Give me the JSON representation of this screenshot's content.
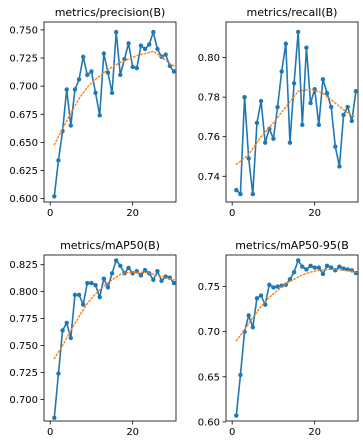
{
  "colors": {
    "series": "#1f77b4",
    "smooth": "#ff7f0e",
    "axis": "#000000"
  },
  "chart_data": [
    {
      "type": "line",
      "title": "metrics/precision(B)",
      "xlim": [
        -1.5,
        30.5
      ],
      "ylim": [
        0.597,
        0.757
      ],
      "x_ticks": [
        0,
        20
      ],
      "y_ticks": [
        "0.600",
        "0.625",
        "0.650",
        "0.675",
        "0.700",
        "0.725",
        "0.750"
      ],
      "y_tick_values": [
        0.6,
        0.625,
        0.65,
        0.675,
        0.7,
        0.725,
        0.75
      ],
      "series": [
        {
          "style": "line-marker",
          "x": [
            1,
            2,
            3,
            4,
            5,
            6,
            7,
            8,
            9,
            10,
            11,
            12,
            13,
            14,
            15,
            16,
            17,
            18,
            19,
            20,
            21,
            22,
            23,
            24,
            25,
            26,
            27,
            28,
            29,
            30
          ],
          "values": [
            0.602,
            0.634,
            0.66,
            0.697,
            0.665,
            0.697,
            0.706,
            0.726,
            0.71,
            0.713,
            0.694,
            0.674,
            0.729,
            0.712,
            0.694,
            0.748,
            0.71,
            0.724,
            0.738,
            0.717,
            0.716,
            0.736,
            0.733,
            0.737,
            0.748,
            0.733,
            0.726,
            0.728,
            0.718,
            0.713
          ]
        },
        {
          "style": "dotted",
          "x": [
            1,
            3,
            5,
            7,
            9,
            11,
            13,
            15,
            17,
            19,
            21,
            23,
            25,
            27,
            29,
            30
          ],
          "values": [
            0.648,
            0.662,
            0.676,
            0.689,
            0.699,
            0.706,
            0.712,
            0.717,
            0.721,
            0.724,
            0.727,
            0.729,
            0.731,
            0.726,
            0.72,
            0.718
          ]
        }
      ]
    },
    {
      "type": "line",
      "title": "metrics/recall(B)",
      "xlim": [
        -1.5,
        30.5
      ],
      "ylim": [
        0.727,
        0.818
      ],
      "x_ticks": [
        0,
        20
      ],
      "y_ticks": [
        "0.74",
        "0.76",
        "0.78",
        "0.80"
      ],
      "y_tick_values": [
        0.74,
        0.76,
        0.78,
        0.8
      ],
      "series": [
        {
          "style": "line-marker",
          "x": [
            1,
            2,
            3,
            4,
            5,
            6,
            7,
            8,
            9,
            10,
            11,
            12,
            13,
            14,
            15,
            16,
            17,
            18,
            19,
            20,
            21,
            22,
            23,
            24,
            25,
            26,
            27,
            28,
            29,
            30
          ],
          "values": [
            0.733,
            0.731,
            0.78,
            0.749,
            0.731,
            0.767,
            0.778,
            0.757,
            0.764,
            0.759,
            0.775,
            0.793,
            0.807,
            0.757,
            0.787,
            0.813,
            0.766,
            0.805,
            0.777,
            0.784,
            0.766,
            0.789,
            0.782,
            0.775,
            0.755,
            0.745,
            0.771,
            0.775,
            0.768,
            0.783
          ]
        },
        {
          "style": "dotted",
          "x": [
            1,
            4,
            7,
            10,
            13,
            16,
            19,
            22,
            25,
            28,
            30
          ],
          "values": [
            0.746,
            0.751,
            0.76,
            0.767,
            0.775,
            0.783,
            0.784,
            0.782,
            0.777,
            0.772,
            0.77
          ]
        }
      ]
    },
    {
      "type": "line",
      "title": "metrics/mAP50(B)",
      "xlim": [
        -1.5,
        30.5
      ],
      "ylim": [
        0.68,
        0.834
      ],
      "x_ticks": [
        0,
        20
      ],
      "y_ticks": [
        "0.700",
        "0.725",
        "0.750",
        "0.775",
        "0.800",
        "0.825"
      ],
      "y_tick_values": [
        0.7,
        0.725,
        0.75,
        0.775,
        0.8,
        0.825
      ],
      "series": [
        {
          "style": "line-marker",
          "x": [
            1,
            2,
            3,
            4,
            5,
            6,
            7,
            8,
            9,
            10,
            11,
            12,
            13,
            14,
            15,
            16,
            17,
            18,
            19,
            20,
            21,
            22,
            23,
            24,
            25,
            26,
            27,
            28,
            29,
            30
          ],
          "values": [
            0.683,
            0.724,
            0.764,
            0.771,
            0.757,
            0.797,
            0.797,
            0.788,
            0.808,
            0.808,
            0.806,
            0.795,
            0.812,
            0.804,
            0.817,
            0.829,
            0.824,
            0.817,
            0.822,
            0.817,
            0.819,
            0.815,
            0.82,
            0.817,
            0.811,
            0.819,
            0.81,
            0.814,
            0.813,
            0.808
          ]
        },
        {
          "style": "dotted",
          "x": [
            1,
            3,
            5,
            7,
            9,
            11,
            13,
            15,
            17,
            19,
            21,
            23,
            25,
            27,
            29,
            30
          ],
          "values": [
            0.738,
            0.75,
            0.764,
            0.777,
            0.789,
            0.798,
            0.805,
            0.811,
            0.816,
            0.818,
            0.818,
            0.818,
            0.816,
            0.814,
            0.812,
            0.811
          ]
        }
      ]
    },
    {
      "type": "line",
      "title": "metrics/mAP50-95(B",
      "xlim": [
        -1.5,
        30.5
      ],
      "ylim": [
        0.601,
        0.785
      ],
      "x_ticks": [
        0,
        20
      ],
      "y_ticks": [
        "0.60",
        "0.65",
        "0.70",
        "0.75"
      ],
      "y_tick_values": [
        0.6,
        0.65,
        0.7,
        0.75
      ],
      "series": [
        {
          "style": "line-marker",
          "x": [
            1,
            2,
            3,
            4,
            5,
            6,
            7,
            8,
            9,
            10,
            11,
            12,
            13,
            14,
            15,
            16,
            17,
            18,
            19,
            20,
            21,
            22,
            23,
            24,
            25,
            26,
            27,
            28,
            29,
            30
          ],
          "values": [
            0.607,
            0.652,
            0.7,
            0.718,
            0.705,
            0.737,
            0.74,
            0.73,
            0.752,
            0.749,
            0.75,
            0.751,
            0.752,
            0.758,
            0.766,
            0.779,
            0.772,
            0.769,
            0.773,
            0.771,
            0.771,
            0.764,
            0.773,
            0.771,
            0.768,
            0.772,
            0.77,
            0.769,
            0.768,
            0.765
          ]
        },
        {
          "style": "dotted",
          "x": [
            1,
            3,
            5,
            7,
            9,
            11,
            13,
            15,
            17,
            19,
            21,
            23,
            25,
            27,
            29,
            30
          ],
          "values": [
            0.69,
            0.702,
            0.716,
            0.728,
            0.738,
            0.746,
            0.753,
            0.758,
            0.763,
            0.766,
            0.768,
            0.769,
            0.769,
            0.768,
            0.767,
            0.766
          ]
        }
      ]
    }
  ]
}
